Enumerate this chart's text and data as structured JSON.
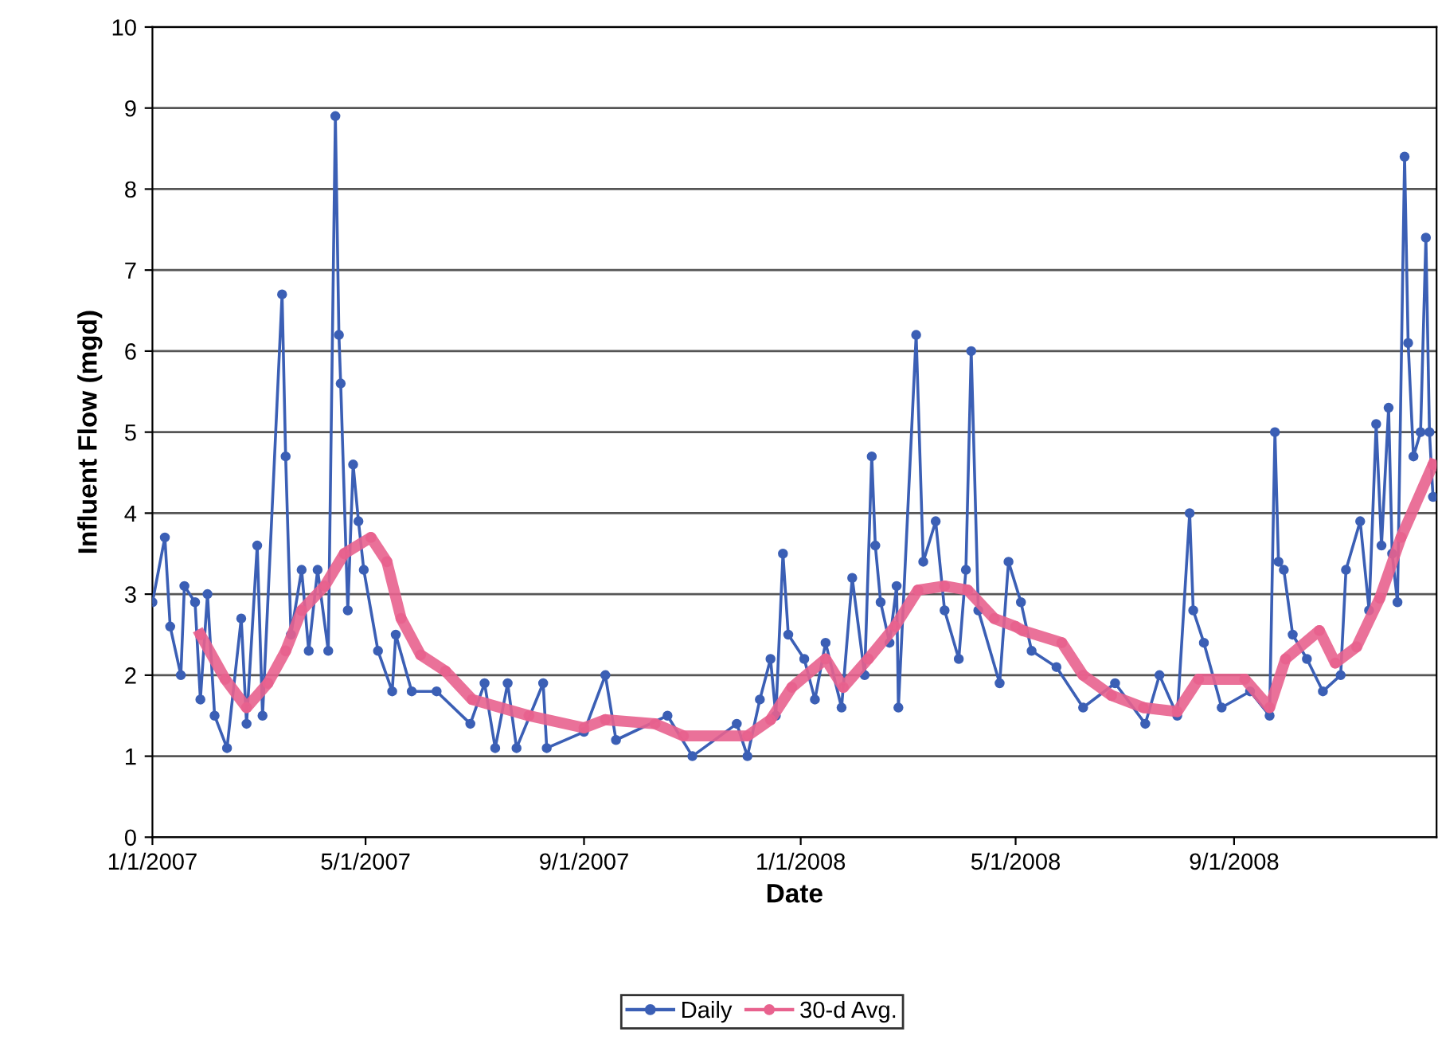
{
  "chart_data": {
    "type": "line",
    "xlabel": "Date",
    "ylabel": "Influent Flow (mgd)",
    "xlim": [
      "2007-01-01",
      "2008-12-24"
    ],
    "xticks": [
      {
        "value": "2007-01-01",
        "label": "1/1/2007"
      },
      {
        "value": "2007-05-01",
        "label": "5/1/2007"
      },
      {
        "value": "2007-09-01",
        "label": "9/1/2007"
      },
      {
        "value": "2008-01-01",
        "label": "1/1/2008"
      },
      {
        "value": "2008-05-01",
        "label": "5/1/2008"
      },
      {
        "value": "2008-09-01",
        "label": "9/1/2008"
      }
    ],
    "ylim": [
      0,
      10
    ],
    "yticks": [
      0,
      1,
      2,
      3,
      4,
      5,
      6,
      7,
      8,
      9,
      10
    ],
    "grid": "y",
    "legend": "bottom",
    "marker": "circle",
    "line_style": "solid",
    "series": [
      {
        "name": "Daily",
        "color": "#3b5fb5",
        "x": [
          "2007-01-01",
          "2007-01-08",
          "2007-01-11",
          "2007-01-17",
          "2007-01-19",
          "2007-01-25",
          "2007-01-28",
          "2007-02-01",
          "2007-02-05",
          "2007-02-12",
          "2007-02-20",
          "2007-02-23",
          "2007-03-01",
          "2007-03-04",
          "2007-03-15",
          "2007-03-17",
          "2007-03-20",
          "2007-03-26",
          "2007-03-30",
          "2007-04-04",
          "2007-04-10",
          "2007-04-14",
          "2007-04-16",
          "2007-04-17",
          "2007-04-21",
          "2007-04-24",
          "2007-04-27",
          "2007-04-30",
          "2007-05-08",
          "2007-05-16",
          "2007-05-18",
          "2007-05-27",
          "2007-06-10",
          "2007-06-29",
          "2007-07-07",
          "2007-07-13",
          "2007-07-20",
          "2007-07-25",
          "2007-08-09",
          "2007-08-11",
          "2007-09-01",
          "2007-09-13",
          "2007-09-19",
          "2007-10-18",
          "2007-11-01",
          "2007-11-26",
          "2007-12-02",
          "2007-12-09",
          "2007-12-15",
          "2007-12-18",
          "2007-12-22",
          "2007-12-25",
          "2008-01-03",
          "2008-01-09",
          "2008-01-15",
          "2008-01-24",
          "2008-01-30",
          "2008-02-06",
          "2008-02-10",
          "2008-02-12",
          "2008-02-15",
          "2008-02-20",
          "2008-02-24",
          "2008-02-25",
          "2008-03-06",
          "2008-03-10",
          "2008-03-17",
          "2008-03-22",
          "2008-03-30",
          "2008-04-03",
          "2008-04-06",
          "2008-04-10",
          "2008-04-22",
          "2008-04-27",
          "2008-05-04",
          "2008-05-10",
          "2008-05-24",
          "2008-06-08",
          "2008-06-26",
          "2008-07-13",
          "2008-07-21",
          "2008-07-31",
          "2008-08-07",
          "2008-08-09",
          "2008-08-15",
          "2008-08-25",
          "2008-09-10",
          "2008-09-21",
          "2008-09-24",
          "2008-09-26",
          "2008-09-29",
          "2008-10-04",
          "2008-10-12",
          "2008-10-21",
          "2008-10-31",
          "2008-11-03",
          "2008-11-11",
          "2008-11-16",
          "2008-11-20",
          "2008-11-23",
          "2008-11-27",
          "2008-11-29",
          "2008-12-02",
          "2008-12-06",
          "2008-12-08",
          "2008-12-11",
          "2008-12-15",
          "2008-12-18",
          "2008-12-20",
          "2008-12-22"
        ],
        "values": [
          2.9,
          3.7,
          2.6,
          2.0,
          3.1,
          2.9,
          1.7,
          3.0,
          1.5,
          1.1,
          2.7,
          1.4,
          3.6,
          1.5,
          6.7,
          4.7,
          2.5,
          3.3,
          2.3,
          3.3,
          2.3,
          8.9,
          6.2,
          5.6,
          2.8,
          4.6,
          3.9,
          3.3,
          2.3,
          1.8,
          2.5,
          1.8,
          1.8,
          1.4,
          1.9,
          1.1,
          1.9,
          1.1,
          1.9,
          1.1,
          1.3,
          2.0,
          1.2,
          1.5,
          1.0,
          1.4,
          1.0,
          1.7,
          2.2,
          1.5,
          3.5,
          2.5,
          2.2,
          1.7,
          2.4,
          1.6,
          3.2,
          2.0,
          4.7,
          3.6,
          2.9,
          2.4,
          3.1,
          1.6,
          6.2,
          3.4,
          3.9,
          2.8,
          2.2,
          3.3,
          6.0,
          2.8,
          1.9,
          3.4,
          2.9,
          2.3,
          2.1,
          1.6,
          1.9,
          1.4,
          2.0,
          1.5,
          4.0,
          2.8,
          2.4,
          1.6,
          1.8,
          1.5,
          5.0,
          3.4,
          3.3,
          2.5,
          2.2,
          1.8,
          2.0,
          3.3,
          3.9,
          2.8,
          5.1,
          3.6,
          5.3,
          3.5,
          2.9,
          8.4,
          6.1,
          4.7,
          5.0,
          7.4,
          5.0,
          4.2
        ]
      },
      {
        "name": "30-d Avg.",
        "color": "#e8628e",
        "x": [
          "2007-01-28",
          "2007-02-11",
          "2007-02-23",
          "2007-03-07",
          "2007-03-17",
          "2007-03-26",
          "2007-04-08",
          "2007-04-19",
          "2007-05-04",
          "2007-05-13",
          "2007-05-21",
          "2007-06-01",
          "2007-06-15",
          "2007-06-30",
          "2007-08-01",
          "2007-09-01",
          "2007-09-13",
          "2007-10-11",
          "2007-10-27",
          "2007-12-02",
          "2007-12-15",
          "2007-12-27",
          "2008-01-15",
          "2008-01-25",
          "2008-02-08",
          "2008-02-23",
          "2008-03-07",
          "2008-03-22",
          "2008-04-04",
          "2008-04-19",
          "2008-05-01",
          "2008-05-05",
          "2008-05-27",
          "2008-06-08",
          "2008-06-24",
          "2008-07-12",
          "2008-07-31",
          "2008-08-12",
          "2008-09-07",
          "2008-09-21",
          "2008-09-30",
          "2008-10-19",
          "2008-10-28",
          "2008-11-09",
          "2008-11-22",
          "2008-12-04",
          "2008-12-22"
        ],
        "values": [
          2.5,
          1.95,
          1.6,
          1.9,
          2.3,
          2.8,
          3.1,
          3.5,
          3.7,
          3.4,
          2.7,
          2.25,
          2.05,
          1.7,
          1.5,
          1.35,
          1.45,
          1.4,
          1.25,
          1.25,
          1.45,
          1.85,
          2.2,
          1.85,
          2.2,
          2.6,
          3.05,
          3.1,
          3.05,
          2.7,
          2.6,
          2.55,
          2.4,
          2.0,
          1.75,
          1.6,
          1.55,
          1.95,
          1.95,
          1.6,
          2.2,
          2.55,
          2.15,
          2.35,
          2.95,
          3.7,
          4.6
        ]
      }
    ]
  }
}
